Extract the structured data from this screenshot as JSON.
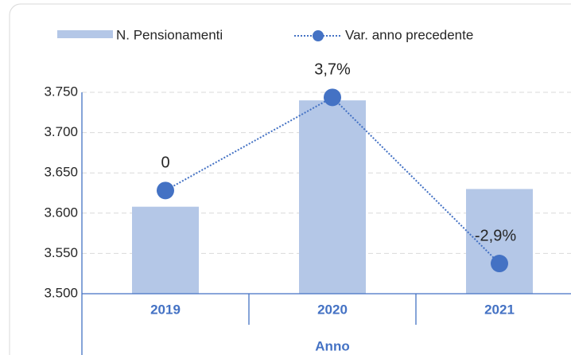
{
  "chart_data": {
    "type": "bar_line",
    "x_label": "Anno",
    "categories": [
      "2019",
      "2020",
      "2021"
    ],
    "series": [
      {
        "name": "N. Pensionamenti",
        "type": "bar",
        "color": "#b4c7e7",
        "values": [
          3608,
          3740,
          3630
        ]
      },
      {
        "name": "Var. anno precedente",
        "type": "line",
        "axis": "y2",
        "color": "#4472c4",
        "values": [
          0,
          3.7,
          -2.9
        ],
        "value_labels": [
          "0",
          "3,7%",
          "-2,9%"
        ]
      }
    ],
    "ylim": [
      3500,
      3750
    ],
    "yticks": [
      {
        "value": 3500,
        "label": "3.500"
      },
      {
        "value": 3550,
        "label": "3.550"
      },
      {
        "value": 3600,
        "label": "3.600"
      },
      {
        "value": 3650,
        "label": "3.650"
      },
      {
        "value": 3700,
        "label": "3.700"
      },
      {
        "value": 3750,
        "label": "3.750"
      }
    ],
    "y2lim": [
      -4.1,
      3.9
    ],
    "grid": true,
    "legend": "top"
  }
}
